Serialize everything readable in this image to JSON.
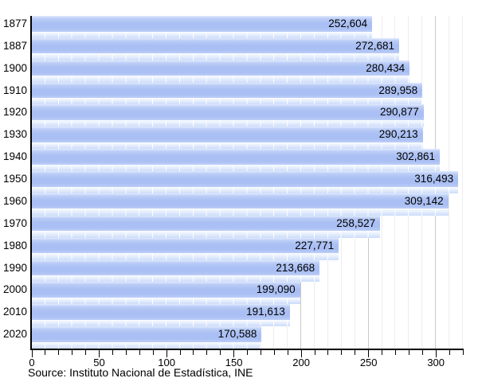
{
  "chart_data": {
    "type": "bar",
    "orientation": "horizontal",
    "title": "",
    "xlabel": "",
    "ylabel": "",
    "categories": [
      "1877",
      "1887",
      "1900",
      "1910",
      "1920",
      "1930",
      "1940",
      "1950",
      "1960",
      "1970",
      "1980",
      "1990",
      "2000",
      "2010",
      "2020"
    ],
    "values": [
      252604,
      272681,
      280434,
      289958,
      290877,
      290213,
      302861,
      316493,
      309142,
      258527,
      227771,
      213668,
      199090,
      191613,
      170588
    ],
    "value_labels": [
      "252,604",
      "272,681",
      "280,434",
      "289,958",
      "290,877",
      "290,213",
      "302,861",
      "316,493",
      "309,142",
      "258,527",
      "227,771",
      "213,668",
      "199,090",
      "191,613",
      "170,588"
    ],
    "x_axis": {
      "unit": "thousands",
      "min": 0,
      "max": 320,
      "major_tick_step": 50,
      "minor_tick_step": 10,
      "tick_labels": [
        "0",
        "50",
        "100",
        "150",
        "200",
        "250",
        "300"
      ],
      "tick_label_values": [
        0,
        50,
        100,
        150,
        200,
        250,
        300
      ]
    },
    "grid": {
      "vertical_minor_every": 10,
      "vertical_major_every": 50,
      "horizontal": false
    },
    "legend": "none",
    "colors": {
      "bar_fill": "#aabff3",
      "bar_highlight": "#e2eafd",
      "bar_reflection": "#ccdcfa",
      "grid_minor": "#ededed",
      "grid_major": "#c9c9c9",
      "axis": "#000000",
      "text": "#000000",
      "background": "#ffffff"
    }
  },
  "source_caption": "Source: Instituto Nacional de Estadística, INE"
}
